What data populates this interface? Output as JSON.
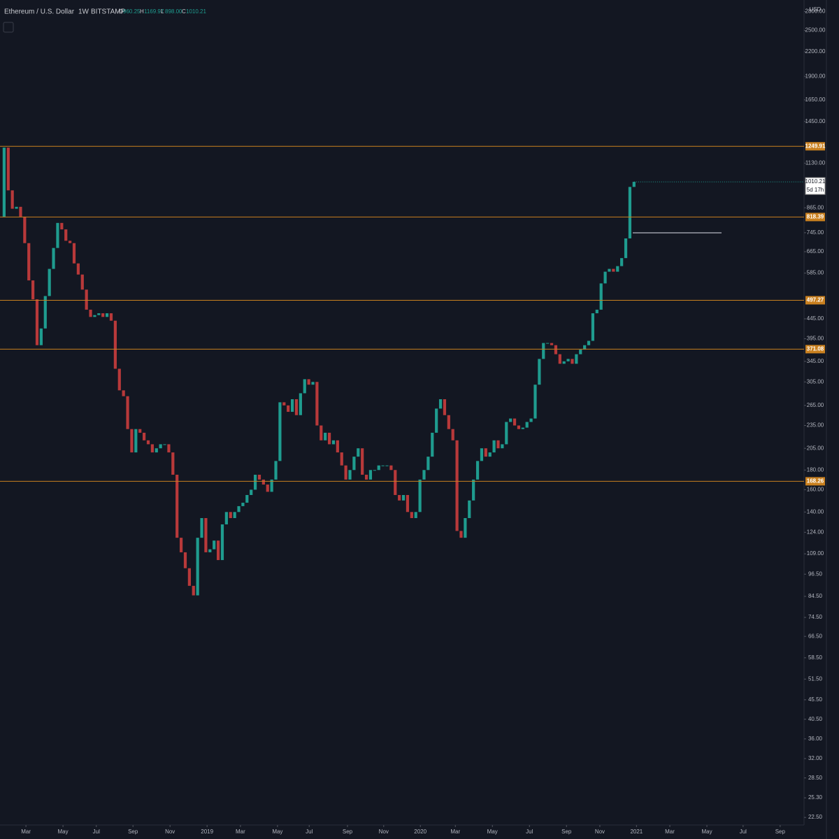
{
  "chart_data": {
    "type": "candlestick",
    "title": "Ethereum / U.S. Dollar",
    "interval": "1W",
    "exchange": "BITSTAMP",
    "ohlc": [
      {
        "key": "O",
        "value": 960.25,
        "label": "960.25"
      },
      {
        "key": "H",
        "value": 1169.97,
        "label": "1169.97"
      },
      {
        "key": "L",
        "value": 898,
        "label": "898.00"
      },
      {
        "key": "C",
        "value": 1010.21,
        "label": "1010.21"
      }
    ],
    "currency": "USD",
    "yscale": "log",
    "ylim": [
      21.5,
      3000
    ],
    "xlim": [
      -1,
      194.3
    ],
    "up_color": "#1f9c8f",
    "down_color": "#b8393a",
    "level_color": "#c9801f",
    "first_open": 820,
    "closes": [
      1240,
      960,
      860,
      870,
      820,
      700,
      560,
      500,
      380,
      420,
      510,
      600,
      680,
      790,
      760,
      710,
      700,
      620,
      580,
      530,
      470,
      450,
      455,
      460,
      450,
      460,
      440,
      330,
      290,
      280,
      230,
      200,
      230,
      225,
      215,
      210,
      200,
      205,
      210,
      210,
      200,
      175,
      120,
      110,
      100,
      90,
      85,
      120,
      135,
      110,
      112,
      118,
      105,
      130,
      140,
      135,
      140,
      145,
      148,
      155,
      160,
      175,
      170,
      165,
      158,
      170,
      190,
      270,
      265,
      255,
      275,
      250,
      285,
      310,
      300,
      305,
      235,
      215,
      225,
      210,
      215,
      200,
      185,
      170,
      180,
      195,
      205,
      175,
      170,
      180,
      180,
      185,
      185,
      185,
      180,
      155,
      150,
      155,
      140,
      135,
      140,
      170,
      180,
      195,
      225,
      260,
      275,
      250,
      230,
      215,
      125,
      120,
      135,
      150,
      170,
      190,
      205,
      195,
      200,
      215,
      205,
      210,
      240,
      245,
      235,
      230,
      232,
      240,
      245,
      300,
      350,
      385,
      385,
      380,
      360,
      340,
      345,
      350,
      340,
      360,
      370,
      380,
      390,
      460,
      470,
      550,
      590,
      600,
      590,
      610,
      640,
      720,
      980,
      1010.21
    ],
    "levels": [
      {
        "value": 1249.91,
        "label": "1249.91"
      },
      {
        "value": 818.39,
        "label": "818.39"
      },
      {
        "value": 497.27,
        "label": "497.27"
      },
      {
        "value": 371.08,
        "label": "371.08"
      },
      {
        "value": 168.26,
        "label": "168.26"
      }
    ],
    "last_price": {
      "value": 1010.21,
      "label": "1010.21"
    },
    "countdown": "5d 17h",
    "yticks": [
      {
        "value": 2800,
        "label": "2800.00"
      },
      {
        "value": 2500,
        "label": "2500.00"
      },
      {
        "value": 2200,
        "label": "2200.00"
      },
      {
        "value": 1900,
        "label": "1900.00"
      },
      {
        "value": 1650,
        "label": "1650.00"
      },
      {
        "value": 1450,
        "label": "1450.00"
      },
      {
        "value": 1130,
        "label": "1130.00"
      },
      {
        "value": 865,
        "label": "865.00"
      },
      {
        "value": 745,
        "label": "745.00"
      },
      {
        "value": 665,
        "label": "665.00"
      },
      {
        "value": 585,
        "label": "585.00"
      },
      {
        "value": 445,
        "label": "445.00"
      },
      {
        "value": 395,
        "label": "395.00"
      },
      {
        "value": 345,
        "label": "345.00"
      },
      {
        "value": 305,
        "label": "305.00"
      },
      {
        "value": 265,
        "label": "265.00"
      },
      {
        "value": 235,
        "label": "235.00"
      },
      {
        "value": 205,
        "label": "205.00"
      },
      {
        "value": 180,
        "label": "180.00"
      },
      {
        "value": 160,
        "label": "160.00"
      },
      {
        "value": 140,
        "label": "140.00"
      },
      {
        "value": 124,
        "label": "124.00"
      },
      {
        "value": 109,
        "label": "109.00"
      },
      {
        "value": 96.5,
        "label": "96.50"
      },
      {
        "value": 84.5,
        "label": "84.50"
      },
      {
        "value": 74.5,
        "label": "74.50"
      },
      {
        "value": 66.5,
        "label": "66.50"
      },
      {
        "value": 58.5,
        "label": "58.50"
      },
      {
        "value": 51.5,
        "label": "51.50"
      },
      {
        "value": 45.5,
        "label": "45.50"
      },
      {
        "value": 40.5,
        "label": "40.50"
      },
      {
        "value": 36,
        "label": "36.00"
      },
      {
        "value": 32,
        "label": "32.00"
      },
      {
        "value": 28.5,
        "label": "28.50"
      },
      {
        "value": 25.3,
        "label": "25.30"
      },
      {
        "value": 22.5,
        "label": "22.50"
      }
    ],
    "xticks": [
      {
        "value": 5.3,
        "label": "Mar"
      },
      {
        "value": 14.3,
        "label": "May"
      },
      {
        "value": 22.4,
        "label": "Jul"
      },
      {
        "value": 31.3,
        "label": "Sep"
      },
      {
        "value": 40.3,
        "label": "Nov"
      },
      {
        "value": 49.3,
        "label": "2019"
      },
      {
        "value": 57.4,
        "label": "Mar"
      },
      {
        "value": 66.4,
        "label": "May"
      },
      {
        "value": 74.1,
        "label": "Jul"
      },
      {
        "value": 83.4,
        "label": "Sep"
      },
      {
        "value": 92.2,
        "label": "Nov"
      },
      {
        "value": 101.1,
        "label": "2020"
      },
      {
        "value": 109.6,
        "label": "Mar"
      },
      {
        "value": 118.6,
        "label": "May"
      },
      {
        "value": 127.6,
        "label": "Jul"
      },
      {
        "value": 136.6,
        "label": "Sep"
      },
      {
        "value": 144.7,
        "label": "Nov"
      },
      {
        "value": 153.6,
        "label": "2021"
      },
      {
        "value": 161.7,
        "label": "Mar"
      },
      {
        "value": 170.7,
        "label": "May"
      },
      {
        "value": 179.5,
        "label": "Jul"
      },
      {
        "value": 188.5,
        "label": "Sep"
      }
    ]
  }
}
